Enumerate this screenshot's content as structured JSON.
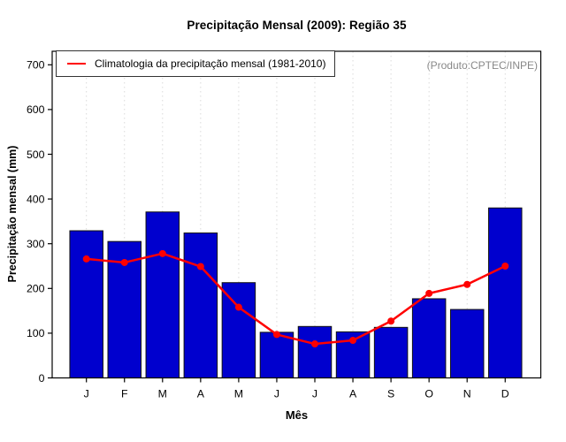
{
  "header": {
    "title": "Precipitação Mensal (2009): Região 35"
  },
  "annotation": {
    "text": "(Produto:CPTEC/INPE)",
    "color": "#888888"
  },
  "legend": {
    "label": "Climatologia da precipitação mensal (1981-2010)",
    "line_color": "#ff0000"
  },
  "chart_data": {
    "type": "bar",
    "title": "Precipitação Mensal (2009): Região 35",
    "xlabel": "Mês",
    "ylabel": "Precipitação mensal (mm)",
    "categories": [
      "J",
      "F",
      "M",
      "A",
      "M",
      "J",
      "J",
      "A",
      "S",
      "O",
      "N",
      "D"
    ],
    "series": [
      {
        "name": "Precipitação mensal (2009)",
        "type": "bar",
        "color": "#0000ce",
        "border_color": "#111111",
        "values": [
          329,
          305,
          371,
          324,
          213,
          102,
          115,
          103,
          113,
          177,
          153,
          380
        ]
      },
      {
        "name": "Climatologia da precipitação mensal (1981-2010)",
        "type": "line",
        "color": "#ff0000",
        "values": [
          266,
          258,
          278,
          249,
          158,
          97,
          76,
          84,
          127,
          189,
          209,
          250
        ]
      }
    ],
    "ylim": [
      0,
      700
    ],
    "yticks": [
      0,
      100,
      200,
      300,
      400,
      500,
      600,
      700
    ],
    "grid": {
      "vertical_dotted": true,
      "color": "#dadada"
    },
    "legend_position": "top-left",
    "axis_color": "#000000"
  }
}
